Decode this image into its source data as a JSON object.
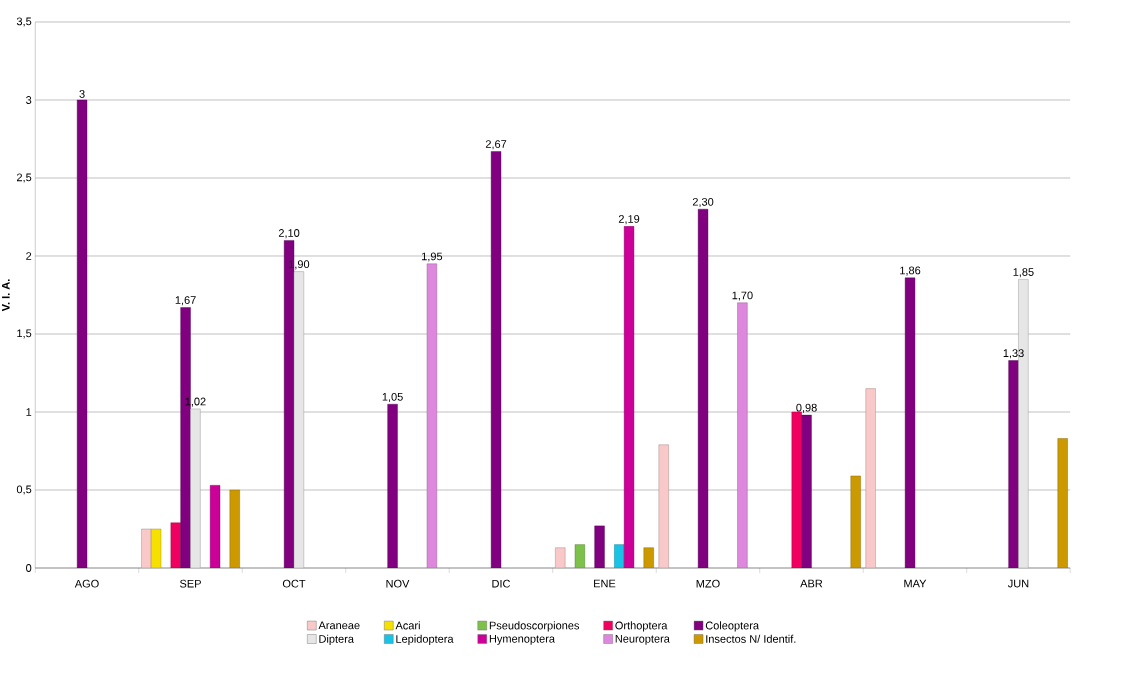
{
  "chart_data": {
    "type": "bar",
    "ylabel": "V. I. A.",
    "categories": [
      "AGO",
      "SEP",
      "OCT",
      "NOV",
      "DIC",
      "ENE",
      "MZO",
      "ABR",
      "MAY",
      "JUN"
    ],
    "ylim": [
      0,
      3.5
    ],
    "yticks": [
      0,
      {
        "value": 0.5,
        "label": "0,5"
      },
      1,
      {
        "value": 1.5,
        "label": "1,5"
      },
      2,
      {
        "value": 2.5,
        "label": "2,5"
      },
      3,
      {
        "value": 3.5,
        "label": "3,5"
      }
    ],
    "grid": "y",
    "legend": "bottom",
    "series": [
      {
        "name": "Araneae",
        "color": "#f9c8c8",
        "values": [
          null,
          0.25,
          null,
          null,
          null,
          0.13,
          0.79,
          null,
          1.15,
          null
        ]
      },
      {
        "name": "Acari",
        "color": "#f5e000",
        "values": [
          null,
          0.25,
          null,
          null,
          null,
          null,
          null,
          null,
          null,
          null
        ]
      },
      {
        "name": "Pseudoscorpiones",
        "color": "#7dc04a",
        "values": [
          null,
          null,
          null,
          null,
          null,
          0.15,
          null,
          null,
          null,
          null
        ]
      },
      {
        "name": "Orthoptera",
        "color": "#f0005f",
        "values": [
          null,
          0.29,
          null,
          null,
          null,
          null,
          null,
          1.0,
          null,
          null
        ]
      },
      {
        "name": "Coleoptera",
        "color": "#800080",
        "values": [
          3,
          1.67,
          2.1,
          1.05,
          2.67,
          0.27,
          2.3,
          0.98,
          1.86,
          1.33
        ],
        "value_labels": [
          "3",
          "1,67",
          "2,10",
          "1,05",
          "2,67",
          null,
          "2,30",
          "0,98",
          "1,86",
          "1,33"
        ]
      },
      {
        "name": "Diptera",
        "color": "#e6e6e6",
        "values": [
          null,
          1.02,
          1.9,
          null,
          null,
          null,
          null,
          null,
          null,
          1.85
        ],
        "value_labels": [
          null,
          "1,02",
          "1,90",
          null,
          null,
          null,
          null,
          null,
          null,
          "1,85"
        ]
      },
      {
        "name": "Lepidoptera",
        "color": "#19c3e6",
        "values": [
          null,
          null,
          null,
          null,
          null,
          0.15,
          null,
          null,
          null,
          null
        ]
      },
      {
        "name": "Hymenoptera",
        "color": "#cc0099",
        "values": [
          null,
          0.53,
          null,
          null,
          null,
          2.19,
          null,
          null,
          null,
          null
        ],
        "value_labels": [
          null,
          null,
          null,
          null,
          null,
          "2,19",
          null,
          null,
          null,
          null
        ]
      },
      {
        "name": "Neuroptera",
        "color": "#dd88dd",
        "values": [
          null,
          null,
          null,
          1.95,
          null,
          null,
          1.7,
          null,
          null,
          null
        ],
        "value_labels": [
          null,
          null,
          null,
          "1,95",
          null,
          null,
          "1,70",
          null,
          null,
          null
        ]
      },
      {
        "name": "Insectos N/ Identif.",
        "color": "#cc9900",
        "values": [
          null,
          0.5,
          null,
          null,
          null,
          0.13,
          null,
          0.59,
          null,
          0.83
        ]
      }
    ]
  }
}
